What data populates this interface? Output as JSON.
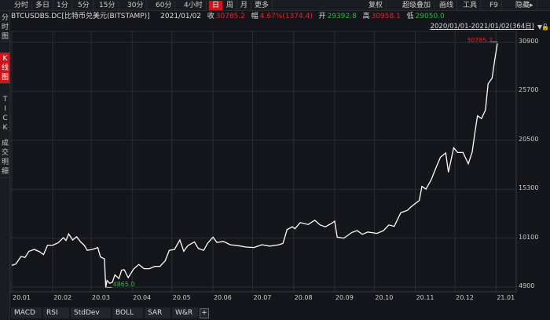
{
  "toolbar": {
    "periods": [
      "分时",
      "多日",
      "1分",
      "5分",
      "15分",
      "30分",
      "60分",
      "4小时",
      "日",
      "周",
      "月",
      "更多"
    ],
    "active_period": "日",
    "right_buttons": [
      "复权",
      "超级叠加",
      "画线",
      "工具",
      "F9",
      "隐藏▸"
    ]
  },
  "info": {
    "symbol": "BTCUSDBS.DC[比特币兑美元(BITSTAMP)]",
    "date": "2021/01/02",
    "close_label": "收",
    "close": "30785.2",
    "change_label": "幅",
    "change": "4.67%(1374.4)",
    "open_label": "开",
    "open": "29392.8",
    "high_label": "高",
    "high": "30958.1",
    "low_label": "低",
    "low": "29050.0"
  },
  "range": {
    "text": "2020/01/01-2021/01/02(364日)"
  },
  "sidebar": [
    {
      "label": "分\n时\n图"
    },
    {
      "label": "K\n线\n图",
      "active": true
    },
    {
      "label": "T\nI\nC\nK"
    },
    {
      "label": "成\n交\n明\n细"
    }
  ],
  "colors": {
    "up": "#e0262c",
    "down": "#2ab54b",
    "accent": "#c8171d",
    "line": "#ffffff"
  },
  "chart_data": {
    "type": "line",
    "x_tick_labels": [
      "20.01",
      "20.02",
      "20.03",
      "20.04",
      "20.05",
      "20.06",
      "20.07",
      "20.08",
      "20.09",
      "20.10",
      "20.11",
      "20.12",
      "21.01"
    ],
    "y_ticks": [
      4900,
      10100,
      15300,
      20500,
      25700,
      30900
    ],
    "ylim": [
      4900,
      30900
    ],
    "xlim": [
      "2020-01-01",
      "2021-01-02"
    ],
    "grid": true,
    "max_label": "30785.2",
    "min_label": "4865.0",
    "series": [
      {
        "points": [
          [
            "2020-01-01",
            7200
          ],
          [
            "2020-01-04",
            7350
          ],
          [
            "2020-01-08",
            8150
          ],
          [
            "2020-01-11",
            8050
          ],
          [
            "2020-01-14",
            8700
          ],
          [
            "2020-01-18",
            8900
          ],
          [
            "2020-01-22",
            8650
          ],
          [
            "2020-01-25",
            8350
          ],
          [
            "2020-01-28",
            9350
          ],
          [
            "2020-02-01",
            9350
          ],
          [
            "2020-02-05",
            9600
          ],
          [
            "2020-02-09",
            10150
          ],
          [
            "2020-02-11",
            9850
          ],
          [
            "2020-02-13",
            10550
          ],
          [
            "2020-02-16",
            9900
          ],
          [
            "2020-02-19",
            10250
          ],
          [
            "2020-02-22",
            9700
          ],
          [
            "2020-02-25",
            9300
          ],
          [
            "2020-02-27",
            8800
          ],
          [
            "2020-03-02",
            8900
          ],
          [
            "2020-03-06",
            9100
          ],
          [
            "2020-03-08",
            8100
          ],
          [
            "2020-03-11",
            7900
          ],
          [
            "2020-03-12",
            4865
          ],
          [
            "2020-03-13",
            5600
          ],
          [
            "2020-03-15",
            5300
          ],
          [
            "2020-03-17",
            5400
          ],
          [
            "2020-03-19",
            6200
          ],
          [
            "2020-03-22",
            5800
          ],
          [
            "2020-03-24",
            6700
          ],
          [
            "2020-03-26",
            6750
          ],
          [
            "2020-03-29",
            5900
          ],
          [
            "2020-04-02",
            6800
          ],
          [
            "2020-04-06",
            7300
          ],
          [
            "2020-04-10",
            6850
          ],
          [
            "2020-04-14",
            6850
          ],
          [
            "2020-04-18",
            7100
          ],
          [
            "2020-04-22",
            7100
          ],
          [
            "2020-04-26",
            7700
          ],
          [
            "2020-04-29",
            8800
          ],
          [
            "2020-05-03",
            8900
          ],
          [
            "2020-05-07",
            9900
          ],
          [
            "2020-05-10",
            8700
          ],
          [
            "2020-05-13",
            9300
          ],
          [
            "2020-05-18",
            9700
          ],
          [
            "2020-05-21",
            9000
          ],
          [
            "2020-05-25",
            8800
          ],
          [
            "2020-05-28",
            9550
          ],
          [
            "2020-06-01",
            10200
          ],
          [
            "2020-06-04",
            9650
          ],
          [
            "2020-06-09",
            9750
          ],
          [
            "2020-06-14",
            9400
          ],
          [
            "2020-06-20",
            9300
          ],
          [
            "2020-06-26",
            9150
          ],
          [
            "2020-07-02",
            9100
          ],
          [
            "2020-07-08",
            9400
          ],
          [
            "2020-07-14",
            9250
          ],
          [
            "2020-07-21",
            9400
          ],
          [
            "2020-07-24",
            9550
          ],
          [
            "2020-07-27",
            11000
          ],
          [
            "2020-07-31",
            11300
          ],
          [
            "2020-08-02",
            11100
          ],
          [
            "2020-08-06",
            11750
          ],
          [
            "2020-08-09",
            11650
          ],
          [
            "2020-08-12",
            11550
          ],
          [
            "2020-08-17",
            12000
          ],
          [
            "2020-08-21",
            11500
          ],
          [
            "2020-08-25",
            11300
          ],
          [
            "2020-08-30",
            11700
          ],
          [
            "2020-09-01",
            11900
          ],
          [
            "2020-09-03",
            10200
          ],
          [
            "2020-09-08",
            10100
          ],
          [
            "2020-09-14",
            10700
          ],
          [
            "2020-09-18",
            10900
          ],
          [
            "2020-09-22",
            10500
          ],
          [
            "2020-09-26",
            10750
          ],
          [
            "2020-10-03",
            10600
          ],
          [
            "2020-10-08",
            10900
          ],
          [
            "2020-10-12",
            11500
          ],
          [
            "2020-10-16",
            11350
          ],
          [
            "2020-10-21",
            12800
          ],
          [
            "2020-10-26",
            13050
          ],
          [
            "2020-10-29",
            13450
          ],
          [
            "2020-11-04",
            14100
          ],
          [
            "2020-11-06",
            15600
          ],
          [
            "2020-11-09",
            15300
          ],
          [
            "2020-11-13",
            16300
          ],
          [
            "2020-11-17",
            17700
          ],
          [
            "2020-11-20",
            18700
          ],
          [
            "2020-11-24",
            19150
          ],
          [
            "2020-11-26",
            17100
          ],
          [
            "2020-11-30",
            19700
          ],
          [
            "2020-12-03",
            19200
          ],
          [
            "2020-12-07",
            19200
          ],
          [
            "2020-12-11",
            18000
          ],
          [
            "2020-12-14",
            19250
          ],
          [
            "2020-12-16",
            21300
          ],
          [
            "2020-12-18",
            23100
          ],
          [
            "2020-12-21",
            22800
          ],
          [
            "2020-12-24",
            23700
          ],
          [
            "2020-12-26",
            26500
          ],
          [
            "2020-12-29",
            27100
          ],
          [
            "2020-12-31",
            29000
          ],
          [
            "2021-01-02",
            30785
          ]
        ]
      }
    ]
  },
  "indicators": [
    "MACD",
    "RSI",
    "StdDev",
    "BOLL",
    "SAR",
    "W&R",
    "+"
  ]
}
